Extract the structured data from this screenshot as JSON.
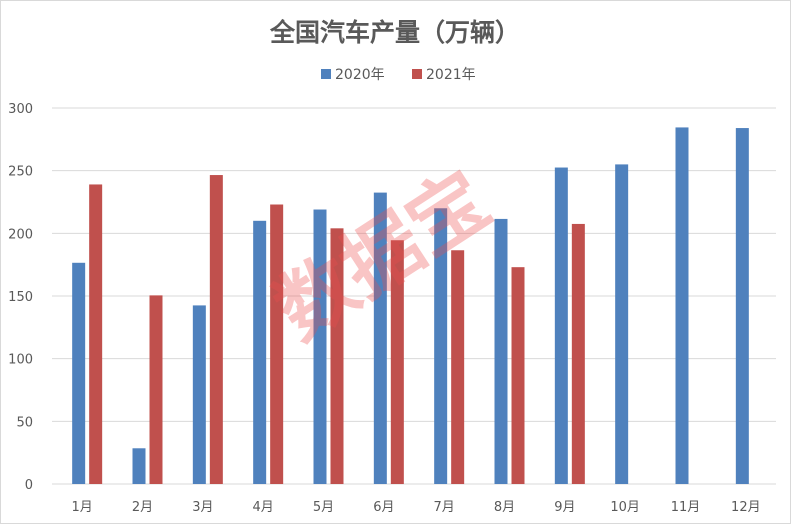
{
  "chart_data": {
    "type": "bar",
    "title": "全国汽车产量（万辆）",
    "categories": [
      "1月",
      "2月",
      "3月",
      "4月",
      "5月",
      "6月",
      "7月",
      "8月",
      "9月",
      "10月",
      "11月",
      "12月"
    ],
    "series": [
      {
        "name": "2020年",
        "color": "#4f81bd",
        "values": [
          176.5,
          28.5,
          142.5,
          210,
          219,
          232.5,
          220,
          211.5,
          252.5,
          255,
          284.5,
          284
        ]
      },
      {
        "name": "2021年",
        "color": "#c0504d",
        "values": [
          239,
          150.5,
          246.5,
          223,
          204,
          194.5,
          186.5,
          173,
          207.5,
          null,
          null,
          null
        ]
      }
    ],
    "ylim": [
      0,
      300
    ],
    "yticks": [
      0,
      50,
      100,
      150,
      200,
      250,
      300
    ],
    "grid": true,
    "legend_position": "top-center"
  },
  "watermark": {
    "text": "数据宝",
    "color": "#ee4d4d"
  }
}
